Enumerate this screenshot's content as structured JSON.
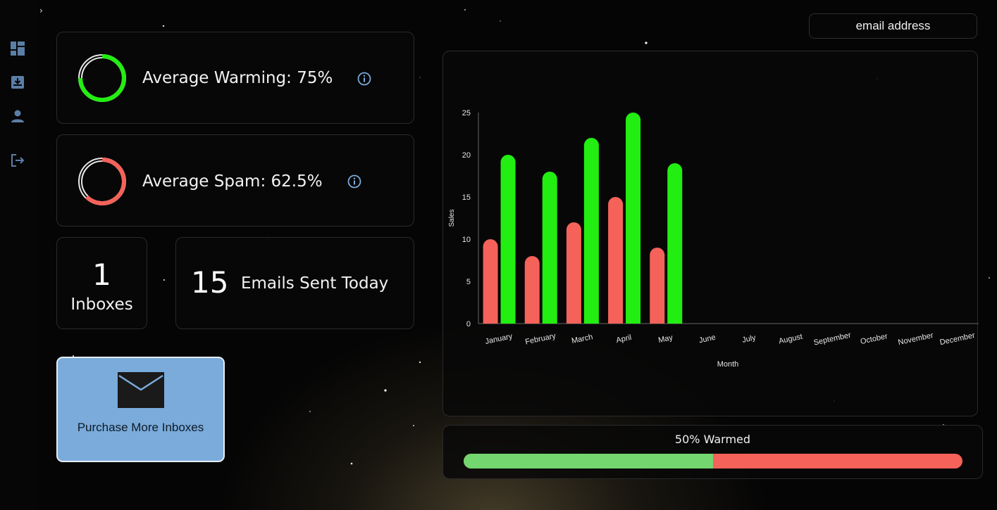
{
  "header": {
    "email_field": "email address"
  },
  "sidebar": {
    "items": [
      {
        "icon": "dashboard-icon"
      },
      {
        "icon": "inbox-icon"
      },
      {
        "icon": "user-icon"
      },
      {
        "icon": "logout-icon"
      }
    ]
  },
  "stats": {
    "warming": {
      "label": "Average Warming: 75%",
      "value": 75,
      "color": "#22ee11"
    },
    "spam": {
      "label": "Average Spam: 62.5%",
      "value": 62.5,
      "color": "#f4625a"
    },
    "inboxes": {
      "count": "1",
      "label": "Inboxes"
    },
    "emails": {
      "count": "15",
      "label": "Emails Sent Today"
    }
  },
  "purchase": {
    "label": "Purchase More Inboxes",
    "icon": "envelope-icon"
  },
  "progress": {
    "label": "50% Warmed",
    "value": 50,
    "fill_color": "#74d66e",
    "track_color": "#f4625a"
  },
  "chart_data": {
    "type": "bar",
    "xlabel": "Month",
    "ylabel": "Sales",
    "ylim": [
      0,
      25
    ],
    "yticks": [
      0,
      5,
      10,
      15,
      20,
      25
    ],
    "categories": [
      "January",
      "February",
      "March",
      "April",
      "May",
      "June",
      "July",
      "August",
      "September",
      "October",
      "November",
      "December"
    ],
    "series": [
      {
        "values": [
          10,
          8,
          12,
          15,
          9,
          null,
          null,
          null,
          null,
          null,
          null,
          null
        ],
        "color": "#f4625a"
      },
      {
        "values": [
          20,
          18,
          22,
          25,
          19,
          null,
          null,
          null,
          null,
          null,
          null,
          null
        ],
        "color": "#22ee11"
      }
    ]
  }
}
